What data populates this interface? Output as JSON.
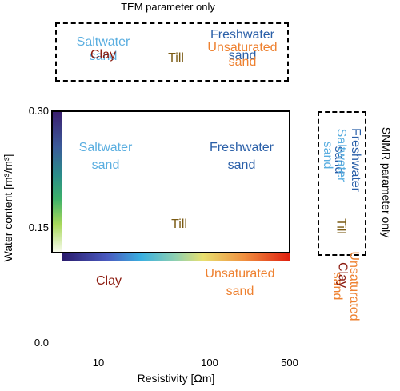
{
  "colors": {
    "saltwater": "#5aaee0",
    "freshwater": "#2a5fa8",
    "till": "#7a5a12",
    "clay": "#8b1a0e",
    "unsaturated": "#ee8130"
  },
  "top_panel": {
    "title": "TEM parameter only",
    "saltwater": [
      "Saltwater",
      "sand"
    ],
    "clay": "Clay",
    "till": "Till",
    "freshwater": [
      "Freshwater",
      "sand"
    ],
    "unsaturated": [
      "Unsaturated",
      "sand"
    ]
  },
  "main_panel": {
    "saltwater": [
      "Saltwater",
      "sand"
    ],
    "freshwater": [
      "Freshwater",
      "sand"
    ],
    "till": "Till",
    "clay": "Clay",
    "unsaturated": [
      "Unsaturated",
      "sand"
    ]
  },
  "right_panel": {
    "title": "SNMR parameter only",
    "freshwater": [
      "Freshwater",
      "sand"
    ],
    "saltwater": [
      "Saltwater",
      "sand"
    ],
    "till": "Till",
    "unsaturated": [
      "Unsaturated",
      "sand"
    ],
    "clay": "Clay"
  },
  "axes": {
    "ylabel": "Water content [m³/m³]",
    "yticks": [
      "0.30",
      "0.15",
      "0.0"
    ],
    "xlabel": "Resistivity [Ωm]",
    "xticks": [
      "10",
      "100",
      "500"
    ]
  }
}
